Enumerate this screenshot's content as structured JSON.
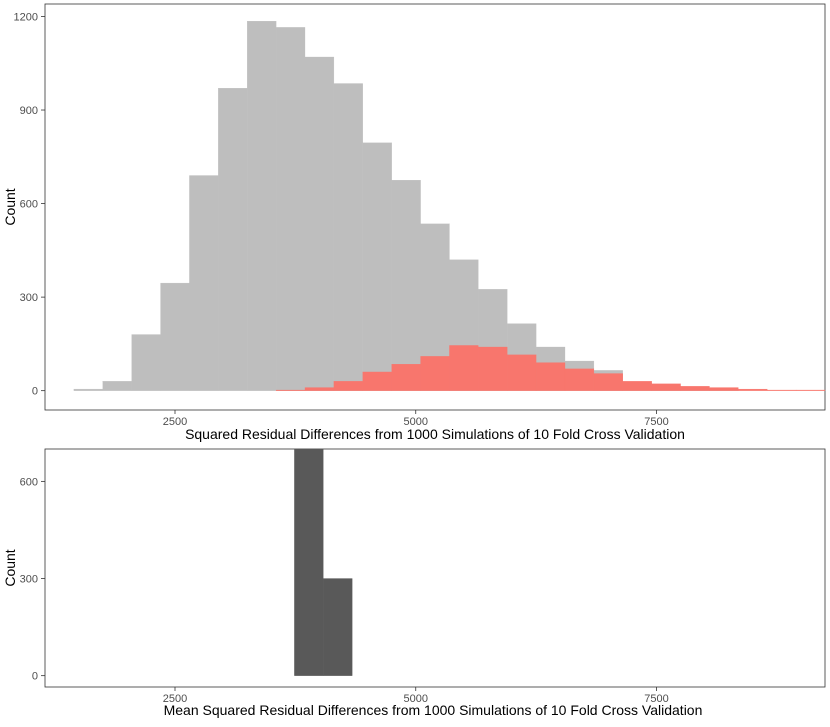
{
  "chart_data": [
    {
      "type": "histogram",
      "title": "",
      "xlabel": "Squared Residual Differences from 1000 Simulations of 10 Fold Cross Validation",
      "ylabel": "Count",
      "xlim": [
        1150,
        9250
      ],
      "ylim": [
        -62,
        1240
      ],
      "x_ticks": [
        2500,
        5000,
        7500
      ],
      "x_tick_labels": [
        "2500",
        "5000",
        "7500"
      ],
      "y_ticks": [
        0,
        300,
        600,
        900,
        1200
      ],
      "y_tick_labels": [
        "0",
        "300",
        "600",
        "900",
        "1200"
      ],
      "grid": false,
      "bin_width": 300,
      "series": [
        {
          "color": "#bebebe",
          "bins": [
            {
              "x0": 1450,
              "x1": 1750,
              "count": 5
            },
            {
              "x0": 1750,
              "x1": 2050,
              "count": 30
            },
            {
              "x0": 2050,
              "x1": 2350,
              "count": 180
            },
            {
              "x0": 2350,
              "x1": 2650,
              "count": 345
            },
            {
              "x0": 2650,
              "x1": 2950,
              "count": 690
            },
            {
              "x0": 2950,
              "x1": 3250,
              "count": 970
            },
            {
              "x0": 3250,
              "x1": 3550,
              "count": 1185
            },
            {
              "x0": 3550,
              "x1": 3850,
              "count": 1165
            },
            {
              "x0": 3850,
              "x1": 4150,
              "count": 1070
            },
            {
              "x0": 4150,
              "x1": 4450,
              "count": 985
            },
            {
              "x0": 4450,
              "x1": 4750,
              "count": 795
            },
            {
              "x0": 4750,
              "x1": 5050,
              "count": 675
            },
            {
              "x0": 5050,
              "x1": 5350,
              "count": 535
            },
            {
              "x0": 5350,
              "x1": 5650,
              "count": 420
            },
            {
              "x0": 5650,
              "x1": 5950,
              "count": 325
            },
            {
              "x0": 5950,
              "x1": 6250,
              "count": 215
            },
            {
              "x0": 6250,
              "x1": 6550,
              "count": 140
            },
            {
              "x0": 6550,
              "x1": 6850,
              "count": 95
            },
            {
              "x0": 6850,
              "x1": 7150,
              "count": 65
            },
            {
              "x0": 7150,
              "x1": 7450,
              "count": 25
            },
            {
              "x0": 7450,
              "x1": 7750,
              "count": 15
            },
            {
              "x0": 7750,
              "x1": 8050,
              "count": 5
            },
            {
              "x0": 8050,
              "x1": 8350,
              "count": 2
            }
          ]
        },
        {
          "color": "#f8766d",
          "bins": [
            {
              "x0": 3550,
              "x1": 3850,
              "count": 2
            },
            {
              "x0": 3850,
              "x1": 4150,
              "count": 10
            },
            {
              "x0": 4150,
              "x1": 4450,
              "count": 30
            },
            {
              "x0": 4450,
              "x1": 4750,
              "count": 60
            },
            {
              "x0": 4750,
              "x1": 5050,
              "count": 85
            },
            {
              "x0": 5050,
              "x1": 5350,
              "count": 110
            },
            {
              "x0": 5350,
              "x1": 5650,
              "count": 145
            },
            {
              "x0": 5650,
              "x1": 5950,
              "count": 140
            },
            {
              "x0": 5950,
              "x1": 6250,
              "count": 115
            },
            {
              "x0": 6250,
              "x1": 6550,
              "count": 90
            },
            {
              "x0": 6550,
              "x1": 6850,
              "count": 70
            },
            {
              "x0": 6850,
              "x1": 7150,
              "count": 55
            },
            {
              "x0": 7150,
              "x1": 7450,
              "count": 30
            },
            {
              "x0": 7450,
              "x1": 7750,
              "count": 22
            },
            {
              "x0": 7750,
              "x1": 8050,
              "count": 14
            },
            {
              "x0": 8050,
              "x1": 8350,
              "count": 10
            },
            {
              "x0": 8350,
              "x1": 8650,
              "count": 5
            },
            {
              "x0": 8650,
              "x1": 8950,
              "count": 2
            },
            {
              "x0": 8950,
              "x1": 9250,
              "count": 2
            }
          ]
        }
      ]
    },
    {
      "type": "histogram",
      "title": "",
      "xlabel": "Mean Squared Residual Differences from 1000 Simulations of 10 Fold Cross Validation",
      "ylabel": "Count",
      "xlim": [
        1150,
        9250
      ],
      "ylim": [
        -35,
        700
      ],
      "x_ticks": [
        2500,
        5000,
        7500
      ],
      "x_tick_labels": [
        "2500",
        "5000",
        "7500"
      ],
      "y_ticks": [
        0,
        300,
        600
      ],
      "y_tick_labels": [
        "0",
        "300",
        "600"
      ],
      "grid": false,
      "bin_width": 300,
      "series": [
        {
          "color": "#595959",
          "bins": [
            {
              "x0": 3740,
              "x1": 4040,
              "count": 700
            },
            {
              "x0": 4040,
              "x1": 4340,
              "count": 300
            }
          ]
        }
      ]
    }
  ]
}
